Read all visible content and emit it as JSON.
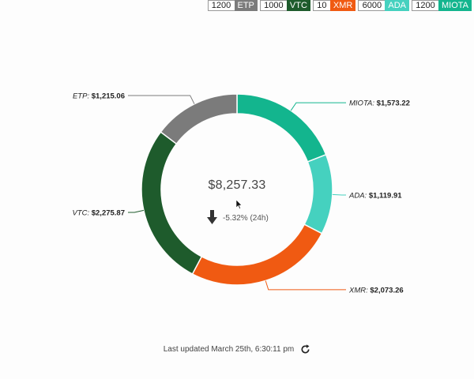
{
  "holdings": [
    {
      "amount": "1200",
      "symbol": "ETP",
      "color": "#7b7b7b"
    },
    {
      "amount": "1000",
      "symbol": "VTC",
      "color": "#1e5b2c"
    },
    {
      "amount": "10",
      "symbol": "XMR",
      "color": "#f05a12"
    },
    {
      "amount": "6000",
      "symbol": "ADA",
      "color": "#45d1bf"
    },
    {
      "amount": "1200",
      "symbol": "MIOTA",
      "color": "#13b58e"
    }
  ],
  "chart_data": {
    "type": "pie",
    "donut": true,
    "total": "$8,257.33",
    "change": "-5.32% (24h)",
    "change_direction": "down",
    "slices": [
      {
        "name": "MIOTA",
        "value": 1573.22,
        "label": "$1,573.22",
        "color": "#13b58e"
      },
      {
        "name": "ADA",
        "value": 1119.91,
        "label": "$1,119.91",
        "color": "#45d1bf"
      },
      {
        "name": "XMR",
        "value": 2073.26,
        "label": "$2,073.26",
        "color": "#f05a12"
      },
      {
        "name": "VTC",
        "value": 2275.87,
        "label": "$2,275.87",
        "color": "#1e5b2c"
      },
      {
        "name": "ETP",
        "value": 1215.06,
        "label": "$1,215.06",
        "color": "#7b7b7b"
      }
    ]
  },
  "footer": {
    "last_updated": "Last updated March 25th, 6:30:11 pm",
    "refresh_icon": "refresh-icon"
  }
}
